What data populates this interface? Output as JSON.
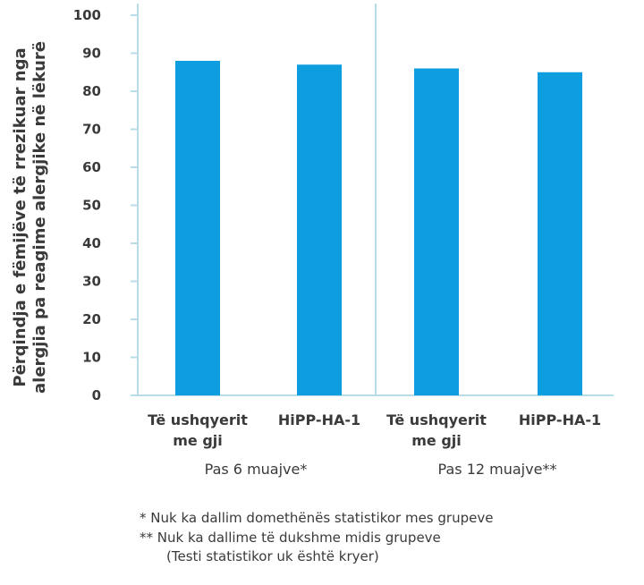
{
  "chart_data": {
    "type": "bar",
    "ylabel_line1": "Përqindja e fëmijëve të rrezikuar nga",
    "ylabel_line2": "alergjia pa reagime alergjike në lëkurë",
    "ylim": [
      0,
      100
    ],
    "yticks": [
      "0",
      "10",
      "20",
      "30",
      "40",
      "50",
      "60",
      "70",
      "80",
      "90",
      "100"
    ],
    "categories": [
      {
        "label_line1": "Të ushqyerit",
        "label_line2": "me gji"
      },
      {
        "label_line1": "HiPP-HA-1",
        "label_line2": ""
      },
      {
        "label_line1": "Të ushqyerit",
        "label_line2": "me gji"
      },
      {
        "label_line1": "HiPP-HA-1",
        "label_line2": ""
      }
    ],
    "values": [
      88,
      87,
      86,
      85
    ],
    "groups": [
      "Pas 6 muajve*",
      "Pas 12 muajve**"
    ],
    "grid": false,
    "bar_color": "#0e9ee0",
    "axis_color": "#b8dcea"
  },
  "footnotes": {
    "line1": "*   Nuk ka dallim domethënës statistikor mes grupeve",
    "line2": "** Nuk ka dallime të dukshme midis grupeve",
    "line3": "(Testi statistikor uk është kryer)"
  }
}
